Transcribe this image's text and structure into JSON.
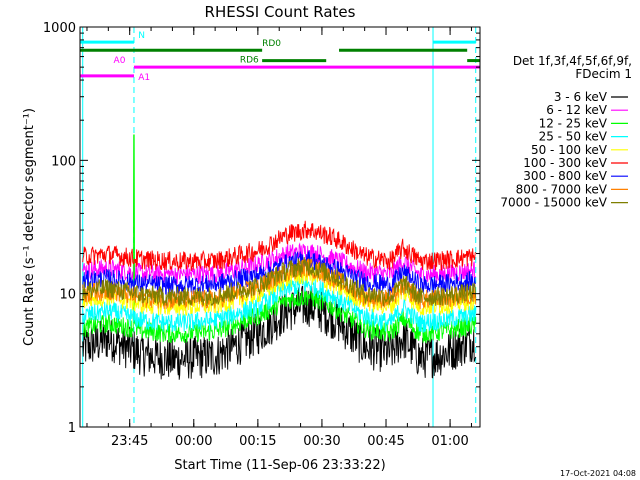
{
  "chart_data": {
    "type": "line",
    "title": "RHESSI Count Rates",
    "xlabel": "Start Time (11-Sep-06 23:33:22)",
    "ylabel": "Count Rate (s⁻¹ detector segment⁻¹)",
    "yscale": "log",
    "ylim": [
      1,
      1000
    ],
    "xlim": [
      "23:33:22",
      "01:07:00"
    ],
    "x_ticks": [
      "23:45",
      "00:00",
      "00:15",
      "00:30",
      "00:45",
      "01:00"
    ],
    "y_ticks": [
      "1",
      "10",
      "100",
      "1000"
    ],
    "grid": false,
    "legend_position": "right",
    "legend_header": [
      "Det 1f,3f,4f,5f,6f,9f,",
      "FDecim 1"
    ],
    "x_profile": [
      "23:34",
      "23:40",
      "23:48",
      "23:55",
      "00:05",
      "00:15",
      "00:22",
      "00:27",
      "00:33",
      "00:40",
      "00:46",
      "00:49",
      "00:53",
      "00:58",
      "01:06"
    ],
    "series": [
      {
        "name": "3 - 6 keV",
        "color": "#000000",
        "values": [
          3.9,
          4.6,
          3.5,
          3.2,
          3.4,
          5.0,
          7.5,
          8.2,
          6.5,
          4.0,
          3.6,
          4.7,
          3.3,
          3.5,
          4.6
        ]
      },
      {
        "name": "6 - 12 keV",
        "color": "#ff00ff",
        "values": [
          15.0,
          15.5,
          14.2,
          14.0,
          14.0,
          16.5,
          20.0,
          20.8,
          18.0,
          14.5,
          14.0,
          17.5,
          13.8,
          14.0,
          15.0
        ]
      },
      {
        "name": "12 - 25 keV",
        "color": "#00ff00",
        "values": [
          5.5,
          6.0,
          5.3,
          5.0,
          5.2,
          6.8,
          9.0,
          9.6,
          7.8,
          5.5,
          5.0,
          6.5,
          5.0,
          5.2,
          5.8
        ]
      },
      {
        "name": "25 - 50 keV",
        "color": "#00ffff",
        "values": [
          6.8,
          7.5,
          6.3,
          6.0,
          6.3,
          8.0,
          11.0,
          11.8,
          9.5,
          6.8,
          6.0,
          8.0,
          6.0,
          6.3,
          7.0
        ]
      },
      {
        "name": "50 - 100 keV",
        "color": "#ffff00",
        "values": [
          9.0,
          9.6,
          8.3,
          8.0,
          8.2,
          10.0,
          13.0,
          14.0,
          11.5,
          8.8,
          8.0,
          10.5,
          8.0,
          8.2,
          9.0
        ]
      },
      {
        "name": "100 - 300 keV",
        "color": "#ff0000",
        "values": [
          19.0,
          19.8,
          18.0,
          17.5,
          17.5,
          21.0,
          28.0,
          30.5,
          26.0,
          19.0,
          17.5,
          22.0,
          17.5,
          17.8,
          19.0
        ]
      },
      {
        "name": "300 - 800 keV",
        "color": "#0000ff",
        "values": [
          12.5,
          13.0,
          11.8,
          11.5,
          11.8,
          13.8,
          17.0,
          18.2,
          15.5,
          12.3,
          11.6,
          14.5,
          11.5,
          11.8,
          12.5
        ]
      },
      {
        "name": "800 - 7000 keV",
        "color": "#ff8000",
        "values": [
          10.0,
          10.6,
          9.3,
          9.0,
          9.0,
          11.0,
          14.8,
          15.8,
          13.0,
          9.5,
          9.0,
          11.5,
          9.0,
          9.2,
          9.8
        ]
      },
      {
        "name": "7000 - 15000 keV",
        "color": "#7f7f00",
        "values": [
          10.5,
          11.0,
          9.8,
          9.5,
          9.6,
          11.5,
          15.2,
          16.2,
          13.5,
          10.0,
          9.4,
          12.0,
          9.4,
          9.6,
          10.2
        ]
      }
    ],
    "spike": {
      "time": "23:46",
      "value": 155
    },
    "state_bars": [
      {
        "label": "N",
        "color": "#00ffff",
        "value": 770,
        "segments": [
          [
            "23:33:22",
            "23:46"
          ],
          [
            "00:56",
            "01:06"
          ]
        ]
      },
      {
        "label": "RD0",
        "color": "#008000",
        "value": 670,
        "segments": [
          [
            "23:33:22",
            "00:16"
          ],
          [
            "00:34",
            "01:04"
          ]
        ]
      },
      {
        "label": "RD6",
        "color": "#008000",
        "value": 560,
        "segments": [
          [
            "00:16",
            "00:31"
          ],
          [
            "01:04",
            "01:07"
          ]
        ]
      },
      {
        "label": "A0",
        "color": "#ff00ff",
        "value": 500,
        "segments": [
          [
            "23:46",
            "01:07"
          ]
        ]
      },
      {
        "label": "A1",
        "color": "#ff00ff",
        "value": 430,
        "segments": [
          [
            "23:33:22",
            "23:46"
          ]
        ]
      }
    ],
    "vertical_markers": [
      {
        "time": "23:34",
        "style": "solid"
      },
      {
        "time": "23:46",
        "style": "dashed"
      },
      {
        "time": "00:56",
        "style": "solid"
      },
      {
        "time": "01:06",
        "style": "dashed"
      }
    ]
  },
  "footer": {
    "timestamp": "17-Oct-2021 04:08"
  }
}
